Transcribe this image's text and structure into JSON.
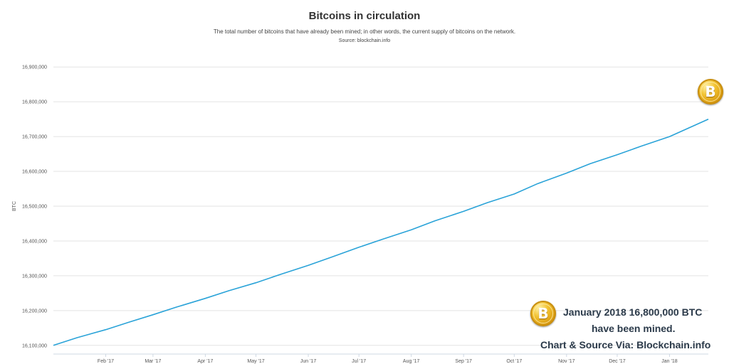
{
  "chart_data": {
    "type": "line",
    "title": "Bitcoins in circulation",
    "subtitle": "The total number of bitcoins that have already been mined; in other words, the current supply of bitcoins on the network.",
    "source": "Source: blockchain.info",
    "ylabel": "BTC",
    "xlabel": "",
    "ylim": [
      16075000,
      16925000
    ],
    "xlim": [
      "2017-01-01",
      "2018-01-24"
    ],
    "y_ticks": [
      16100000,
      16200000,
      16300000,
      16400000,
      16500000,
      16600000,
      16700000,
      16800000,
      16900000
    ],
    "y_tick_labels": [
      "16,100,000",
      "16,200,000",
      "16,300,000",
      "16,400,000",
      "16,500,000",
      "16,600,000",
      "16,700,000",
      "16,800,000",
      "16,900,000"
    ],
    "x_ticks": [
      "2017-02-01",
      "2017-03-01",
      "2017-04-01",
      "2017-05-01",
      "2017-06-01",
      "2017-07-01",
      "2017-08-01",
      "2017-09-01",
      "2017-10-01",
      "2017-11-01",
      "2017-12-01",
      "2018-01-01"
    ],
    "x_tick_labels": [
      "Feb '17",
      "Mar '17",
      "Apr '17",
      "May '17",
      "Jun '17",
      "Jul '17",
      "Aug '17",
      "Sep '17",
      "Oct '17",
      "Nov '17",
      "Dec '17",
      "Jan '18"
    ],
    "grid": true,
    "legend": "none",
    "series": [
      {
        "color": "#2aa3d8",
        "x": [
          "2017-01-01",
          "2017-01-15",
          "2017-02-01",
          "2017-02-15",
          "2017-03-01",
          "2017-03-15",
          "2017-04-01",
          "2017-04-15",
          "2017-05-01",
          "2017-05-15",
          "2017-06-01",
          "2017-06-15",
          "2017-07-01",
          "2017-07-15",
          "2017-08-01",
          "2017-08-15",
          "2017-09-01",
          "2017-09-15",
          "2017-10-01",
          "2017-10-15",
          "2017-11-01",
          "2017-11-15",
          "2017-12-01",
          "2017-12-15",
          "2018-01-01",
          "2018-01-24"
        ],
        "y": [
          16100000,
          16122000,
          16145000,
          16167000,
          16188000,
          16210000,
          16235000,
          16257000,
          16280000,
          16303000,
          16330000,
          16354000,
          16382000,
          16405000,
          16432000,
          16458000,
          16485000,
          16510000,
          16535000,
          16565000,
          16595000,
          16622000,
          16648000,
          16672000,
          16700000,
          16750000
        ]
      }
    ]
  },
  "annotation": {
    "line1": "January 2018 16,800,000 BTC",
    "line2": "have been mined.",
    "line3": "Chart & Source Via: Blockchain.info"
  },
  "coin_symbol": "B",
  "icons": {
    "coin": "bitcoin-coin-icon"
  }
}
